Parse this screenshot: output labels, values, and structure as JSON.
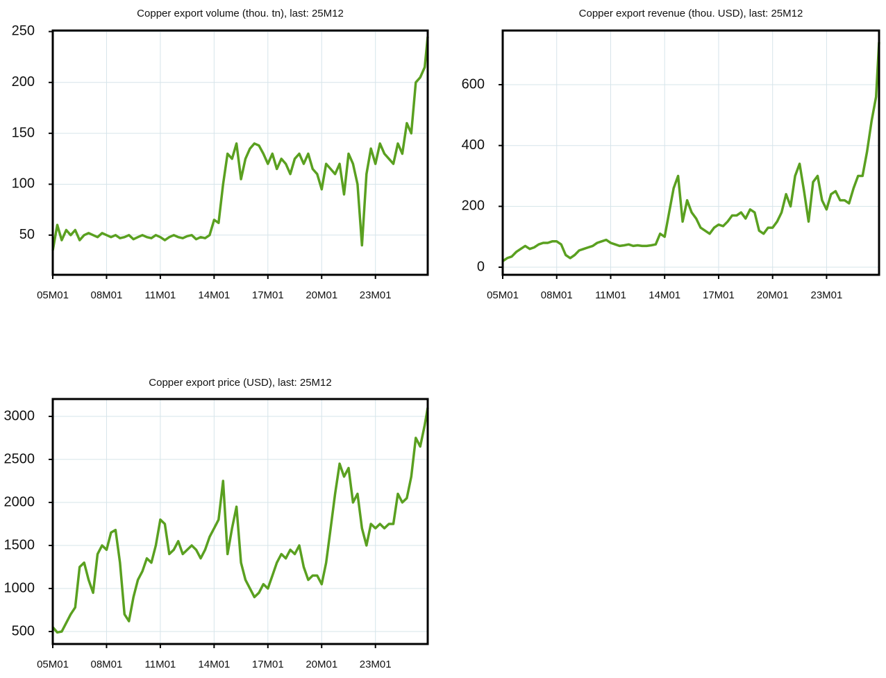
{
  "chart_data": [
    {
      "type": "line",
      "title": "Copper export volume (thou. tn), last: 25M12",
      "color": "#5aa020",
      "grid": true,
      "x": [
        "05M01",
        "05M04",
        "05M07",
        "05M10",
        "06M01",
        "06M04",
        "06M07",
        "06M10",
        "07M01",
        "07M04",
        "07M07",
        "07M10",
        "08M01",
        "08M04",
        "08M07",
        "08M10",
        "09M01",
        "09M04",
        "09M07",
        "09M10",
        "10M01",
        "10M04",
        "10M07",
        "10M10",
        "11M01",
        "11M04",
        "11M07",
        "11M10",
        "12M01",
        "12M04",
        "12M07",
        "12M10",
        "13M01",
        "13M04",
        "13M07",
        "13M10",
        "14M01",
        "14M04",
        "14M07",
        "14M10",
        "15M01",
        "15M04",
        "15M07",
        "15M10",
        "16M01",
        "16M04",
        "16M07",
        "16M10",
        "17M01",
        "17M04",
        "17M07",
        "17M10",
        "18M01",
        "18M04",
        "18M07",
        "18M10",
        "19M01",
        "19M04",
        "19M07",
        "19M10",
        "20M01",
        "20M04",
        "20M07",
        "20M10",
        "21M01",
        "21M04",
        "21M07",
        "21M10",
        "22M01",
        "22M04",
        "22M07",
        "22M10",
        "23M01",
        "23M04",
        "23M07",
        "23M10",
        "24M01",
        "24M04",
        "24M07",
        "24M10",
        "25M01",
        "25M04",
        "25M07",
        "25M10",
        "25M12"
      ],
      "values": [
        35,
        60,
        45,
        55,
        50,
        55,
        45,
        50,
        52,
        50,
        48,
        52,
        50,
        48,
        50,
        47,
        48,
        50,
        46,
        48,
        50,
        48,
        47,
        50,
        48,
        45,
        48,
        50,
        48,
        47,
        49,
        50,
        46,
        48,
        47,
        50,
        65,
        62,
        100,
        130,
        125,
        140,
        105,
        125,
        135,
        140,
        138,
        130,
        120,
        130,
        115,
        125,
        120,
        110,
        125,
        130,
        120,
        130,
        115,
        110,
        95,
        120,
        115,
        110,
        120,
        90,
        130,
        120,
        100,
        40,
        110,
        135,
        120,
        140,
        130,
        125,
        120,
        140,
        130,
        160,
        150,
        200,
        205,
        215,
        245
      ],
      "xlim": [
        "05M01",
        "25M12"
      ],
      "xticks": [
        "05M01",
        "08M01",
        "11M01",
        "14M01",
        "17M01",
        "20M01",
        "23M01"
      ],
      "ylim": [
        11,
        251
      ],
      "yticks": [
        50,
        100,
        150,
        200,
        250
      ]
    },
    {
      "type": "line",
      "title": "Copper export revenue (thou. USD), last: 25M12",
      "color": "#5aa020",
      "grid": true,
      "x": [
        "05M01",
        "05M04",
        "05M07",
        "05M10",
        "06M01",
        "06M04",
        "06M07",
        "06M10",
        "07M01",
        "07M04",
        "07M07",
        "07M10",
        "08M01",
        "08M04",
        "08M07",
        "08M10",
        "09M01",
        "09M04",
        "09M07",
        "09M10",
        "10M01",
        "10M04",
        "10M07",
        "10M10",
        "11M01",
        "11M04",
        "11M07",
        "11M10",
        "12M01",
        "12M04",
        "12M07",
        "12M10",
        "13M01",
        "13M04",
        "13M07",
        "13M10",
        "14M01",
        "14M04",
        "14M07",
        "14M10",
        "15M01",
        "15M04",
        "15M07",
        "15M10",
        "16M01",
        "16M04",
        "16M07",
        "16M10",
        "17M01",
        "17M04",
        "17M07",
        "17M10",
        "18M01",
        "18M04",
        "18M07",
        "18M10",
        "19M01",
        "19M04",
        "19M07",
        "19M10",
        "20M01",
        "20M04",
        "20M07",
        "20M10",
        "21M01",
        "21M04",
        "21M07",
        "21M10",
        "22M01",
        "22M04",
        "22M07",
        "22M10",
        "23M01",
        "23M04",
        "23M07",
        "23M10",
        "24M01",
        "24M04",
        "24M07",
        "24M10",
        "25M01",
        "25M04",
        "25M07",
        "25M10",
        "25M12"
      ],
      "values": [
        20,
        30,
        35,
        50,
        60,
        70,
        60,
        65,
        75,
        80,
        80,
        85,
        85,
        75,
        40,
        30,
        40,
        55,
        60,
        65,
        70,
        80,
        85,
        90,
        80,
        75,
        70,
        72,
        75,
        70,
        72,
        70,
        70,
        72,
        75,
        110,
        100,
        180,
        260,
        300,
        150,
        220,
        180,
        160,
        130,
        120,
        110,
        130,
        140,
        135,
        150,
        170,
        170,
        180,
        160,
        190,
        180,
        120,
        110,
        130,
        130,
        150,
        180,
        240,
        200,
        300,
        340,
        250,
        150,
        280,
        300,
        220,
        190,
        240,
        250,
        220,
        220,
        210,
        260,
        300,
        300,
        380,
        480,
        560,
        740
      ],
      "xlim": [
        "05M01",
        "25M12"
      ],
      "xticks": [
        "05M01",
        "08M01",
        "11M01",
        "14M01",
        "17M01",
        "20M01",
        "23M01"
      ],
      "ylim": [
        -25,
        778
      ],
      "yticks": [
        0,
        200,
        400,
        600
      ]
    },
    {
      "type": "line",
      "title": "Copper export price (USD), last: 25M12",
      "color": "#5aa020",
      "grid": true,
      "x": [
        "05M01",
        "05M04",
        "05M07",
        "05M10",
        "06M01",
        "06M04",
        "06M07",
        "06M10",
        "07M01",
        "07M04",
        "07M07",
        "07M10",
        "08M01",
        "08M04",
        "08M07",
        "08M10",
        "09M01",
        "09M04",
        "09M07",
        "09M10",
        "10M01",
        "10M04",
        "10M07",
        "10M10",
        "11M01",
        "11M04",
        "11M07",
        "11M10",
        "12M01",
        "12M04",
        "12M07",
        "12M10",
        "13M01",
        "13M04",
        "13M07",
        "13M10",
        "14M01",
        "14M04",
        "14M07",
        "14M10",
        "15M01",
        "15M04",
        "15M07",
        "15M10",
        "16M01",
        "16M04",
        "16M07",
        "16M10",
        "17M01",
        "17M04",
        "17M07",
        "17M10",
        "18M01",
        "18M04",
        "18M07",
        "18M10",
        "19M01",
        "19M04",
        "19M07",
        "19M10",
        "20M01",
        "20M04",
        "20M07",
        "20M10",
        "21M01",
        "21M04",
        "21M07",
        "21M10",
        "22M01",
        "22M04",
        "22M07",
        "22M10",
        "23M01",
        "23M04",
        "23M07",
        "23M10",
        "24M01",
        "24M04",
        "24M07",
        "24M10",
        "25M01",
        "25M04",
        "25M07",
        "25M10",
        "25M12"
      ],
      "values": [
        550,
        490,
        500,
        600,
        700,
        780,
        1250,
        1300,
        1100,
        950,
        1400,
        1500,
        1450,
        1650,
        1680,
        1300,
        700,
        620,
        900,
        1100,
        1200,
        1350,
        1300,
        1500,
        1800,
        1750,
        1400,
        1450,
        1550,
        1400,
        1450,
        1500,
        1450,
        1350,
        1450,
        1600,
        1700,
        1800,
        2250,
        1400,
        1700,
        1950,
        1300,
        1100,
        1000,
        900,
        950,
        1050,
        1000,
        1150,
        1300,
        1400,
        1350,
        1450,
        1400,
        1500,
        1250,
        1100,
        1150,
        1150,
        1050,
        1300,
        1700,
        2100,
        2450,
        2300,
        2400,
        2000,
        2100,
        1700,
        1500,
        1750,
        1700,
        1750,
        1700,
        1750,
        1750,
        2100,
        2000,
        2050,
        2300,
        2750,
        2650,
        2900,
        3100
      ],
      "xlim": [
        "05M01",
        "25M12"
      ],
      "xticks": [
        "05M01",
        "08M01",
        "11M01",
        "14M01",
        "17M01",
        "20M01",
        "23M01"
      ],
      "ylim": [
        355,
        3202
      ],
      "yticks": [
        500,
        1000,
        1500,
        2000,
        2500,
        3000
      ]
    }
  ]
}
